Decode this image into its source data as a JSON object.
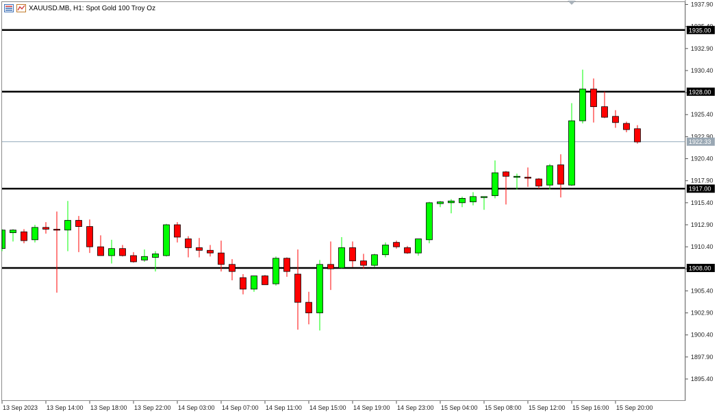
{
  "title": "XAUUSD.MB, H1:  Spot Gold 100 Troy Oz",
  "icons": [
    "chart-list-icon",
    "chart-properties-icon"
  ],
  "colors": {
    "bull": "#00ff00",
    "bear": "#ff0000",
    "level_line": "#000000",
    "current_price_line": "#8fa7b8",
    "current_price_label": "#9aa8b4"
  },
  "chart_data": {
    "type": "candlestick",
    "symbol": "XAUUSD.MB",
    "timeframe": "H1",
    "ylim": [
      1893.0,
      1938.0
    ],
    "y_ticks": [
      "1937.90",
      "1935.40",
      "1932.90",
      "1930.40",
      "1927.90",
      "1925.40",
      "1922.90",
      "1920.40",
      "1917.90",
      "1915.40",
      "1912.90",
      "1910.40",
      "1907.90",
      "1905.40",
      "1902.90",
      "1900.40",
      "1897.90",
      "1895.40"
    ],
    "x_labels": [
      "13 Sep 2023",
      "13 Sep 14:00",
      "13 Sep 18:00",
      "13 Sep 22:00",
      "14 Sep 03:00",
      "14 Sep 07:00",
      "14 Sep 11:00",
      "14 Sep 15:00",
      "14 Sep 19:00",
      "14 Sep 23:00",
      "15 Sep 04:00",
      "15 Sep 08:00",
      "15 Sep 12:00",
      "15 Sep 16:00",
      "15 Sep 20:00"
    ],
    "horizontal_levels": [
      {
        "price": 1935.0,
        "label": "1935.00"
      },
      {
        "price": 1928.0,
        "label": "1928.00"
      },
      {
        "price": 1917.0,
        "label": "1917.00"
      },
      {
        "price": 1908.0,
        "label": "1908.00"
      }
    ],
    "current_price": {
      "price": 1922.33,
      "label": "1922.33"
    },
    "candles": [
      {
        "o": 1910.2,
        "h": 1912.4,
        "l": 1909.9,
        "c": 1912.3
      },
      {
        "o": 1912.0,
        "h": 1912.4,
        "l": 1911.0,
        "c": 1912.3
      },
      {
        "o": 1912.1,
        "h": 1912.4,
        "l": 1910.8,
        "c": 1911.1
      },
      {
        "o": 1911.2,
        "h": 1912.9,
        "l": 1910.9,
        "c": 1912.6
      },
      {
        "o": 1912.6,
        "h": 1913.2,
        "l": 1911.9,
        "c": 1912.4
      },
      {
        "o": 1912.4,
        "h": 1914.4,
        "l": 1905.2,
        "c": 1912.3
      },
      {
        "o": 1912.3,
        "h": 1915.6,
        "l": 1909.9,
        "c": 1913.4
      },
      {
        "o": 1913.4,
        "h": 1913.9,
        "l": 1909.8,
        "c": 1912.7
      },
      {
        "o": 1912.7,
        "h": 1913.5,
        "l": 1909.7,
        "c": 1910.4
      },
      {
        "o": 1910.4,
        "h": 1911.7,
        "l": 1909.7,
        "c": 1909.4
      },
      {
        "o": 1909.4,
        "h": 1911.2,
        "l": 1908.5,
        "c": 1910.2
      },
      {
        "o": 1910.2,
        "h": 1910.6,
        "l": 1909.3,
        "c": 1909.4
      },
      {
        "o": 1909.4,
        "h": 1909.8,
        "l": 1908.6,
        "c": 1908.7
      },
      {
        "o": 1908.9,
        "h": 1910.1,
        "l": 1908.7,
        "c": 1909.3
      },
      {
        "o": 1909.2,
        "h": 1909.9,
        "l": 1907.6,
        "c": 1909.6
      },
      {
        "o": 1909.4,
        "h": 1913.0,
        "l": 1909.3,
        "c": 1912.9
      },
      {
        "o": 1912.9,
        "h": 1913.2,
        "l": 1910.9,
        "c": 1911.5
      },
      {
        "o": 1911.3,
        "h": 1911.6,
        "l": 1909.2,
        "c": 1910.3
      },
      {
        "o": 1910.3,
        "h": 1911.4,
        "l": 1909.2,
        "c": 1910.0
      },
      {
        "o": 1910.0,
        "h": 1910.6,
        "l": 1909.3,
        "c": 1909.7
      },
      {
        "o": 1909.7,
        "h": 1911.1,
        "l": 1907.6,
        "c": 1908.4
      },
      {
        "o": 1908.4,
        "h": 1909.0,
        "l": 1906.6,
        "c": 1907.6
      },
      {
        "o": 1906.9,
        "h": 1907.3,
        "l": 1905.0,
        "c": 1905.6
      },
      {
        "o": 1905.6,
        "h": 1907.1,
        "l": 1905.3,
        "c": 1907.1
      },
      {
        "o": 1907.1,
        "h": 1907.2,
        "l": 1906.1,
        "c": 1906.1
      },
      {
        "o": 1906.2,
        "h": 1909.3,
        "l": 1906.0,
        "c": 1909.1
      },
      {
        "o": 1909.1,
        "h": 1909.2,
        "l": 1907.0,
        "c": 1907.6
      },
      {
        "o": 1907.3,
        "h": 1910.1,
        "l": 1901.0,
        "c": 1904.1
      },
      {
        "o": 1904.1,
        "h": 1905.3,
        "l": 1901.6,
        "c": 1902.9
      },
      {
        "o": 1902.9,
        "h": 1908.9,
        "l": 1900.9,
        "c": 1908.4
      },
      {
        "o": 1908.4,
        "h": 1911.0,
        "l": 1905.5,
        "c": 1907.9
      },
      {
        "o": 1908.0,
        "h": 1911.5,
        "l": 1907.9,
        "c": 1910.3
      },
      {
        "o": 1910.3,
        "h": 1911.0,
        "l": 1908.1,
        "c": 1908.8
      },
      {
        "o": 1908.8,
        "h": 1909.6,
        "l": 1907.9,
        "c": 1908.3
      },
      {
        "o": 1908.3,
        "h": 1909.6,
        "l": 1908.1,
        "c": 1909.5
      },
      {
        "o": 1909.5,
        "h": 1910.9,
        "l": 1909.2,
        "c": 1910.6
      },
      {
        "o": 1910.9,
        "h": 1911.1,
        "l": 1910.2,
        "c": 1910.4
      },
      {
        "o": 1910.3,
        "h": 1910.5,
        "l": 1909.6,
        "c": 1909.7
      },
      {
        "o": 1909.7,
        "h": 1911.3,
        "l": 1909.4,
        "c": 1911.3
      },
      {
        "o": 1911.2,
        "h": 1915.5,
        "l": 1910.8,
        "c": 1915.4
      },
      {
        "o": 1915.3,
        "h": 1915.6,
        "l": 1914.9,
        "c": 1915.5
      },
      {
        "o": 1915.4,
        "h": 1915.8,
        "l": 1914.2,
        "c": 1915.6
      },
      {
        "o": 1915.4,
        "h": 1916.1,
        "l": 1914.9,
        "c": 1915.9
      },
      {
        "o": 1915.5,
        "h": 1916.6,
        "l": 1915.1,
        "c": 1916.1
      },
      {
        "o": 1916.1,
        "h": 1916.1,
        "l": 1914.6,
        "c": 1916.1
      },
      {
        "o": 1916.2,
        "h": 1920.2,
        "l": 1915.9,
        "c": 1918.8
      },
      {
        "o": 1918.9,
        "h": 1919.0,
        "l": 1915.2,
        "c": 1918.4
      },
      {
        "o": 1918.4,
        "h": 1918.7,
        "l": 1916.9,
        "c": 1918.4
      },
      {
        "o": 1918.3,
        "h": 1919.4,
        "l": 1917.2,
        "c": 1918.2
      },
      {
        "o": 1918.1,
        "h": 1918.2,
        "l": 1917.0,
        "c": 1917.3
      },
      {
        "o": 1917.4,
        "h": 1919.8,
        "l": 1916.9,
        "c": 1919.6
      },
      {
        "o": 1919.7,
        "h": 1920.9,
        "l": 1916.0,
        "c": 1917.5
      },
      {
        "o": 1917.4,
        "h": 1926.7,
        "l": 1917.3,
        "c": 1924.7
      },
      {
        "o": 1924.7,
        "h": 1930.5,
        "l": 1924.4,
        "c": 1928.3
      },
      {
        "o": 1928.3,
        "h": 1929.5,
        "l": 1924.5,
        "c": 1926.3
      },
      {
        "o": 1926.3,
        "h": 1928.0,
        "l": 1925.0,
        "c": 1925.1
      },
      {
        "o": 1925.2,
        "h": 1925.9,
        "l": 1923.9,
        "c": 1924.5
      },
      {
        "o": 1924.4,
        "h": 1924.6,
        "l": 1923.4,
        "c": 1923.7
      },
      {
        "o": 1923.8,
        "h": 1924.2,
        "l": 1922.1,
        "c": 1922.3
      }
    ]
  }
}
